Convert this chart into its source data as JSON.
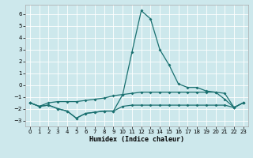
{
  "xlabel": "Humidex (Indice chaleur)",
  "background_color": "#cde8ec",
  "grid_color": "#ffffff",
  "line_color": "#1a7070",
  "xlim": [
    -0.5,
    23.5
  ],
  "ylim": [
    -3.5,
    6.8
  ],
  "yticks": [
    -3,
    -2,
    -1,
    0,
    1,
    2,
    3,
    4,
    5,
    6
  ],
  "xticks": [
    0,
    1,
    2,
    3,
    4,
    5,
    6,
    7,
    8,
    9,
    10,
    11,
    12,
    13,
    14,
    15,
    16,
    17,
    18,
    19,
    20,
    21,
    22,
    23
  ],
  "curve_peak_x": [
    0,
    1,
    2,
    3,
    4,
    5,
    6,
    7,
    8,
    9,
    10,
    11,
    12,
    13,
    14,
    15,
    16,
    17,
    18,
    19,
    20,
    21,
    22,
    23
  ],
  "curve_peak_y": [
    -1.5,
    -1.8,
    -1.7,
    -2.0,
    -2.2,
    -2.8,
    -2.4,
    -2.3,
    -2.2,
    -2.2,
    -0.8,
    2.8,
    6.3,
    5.6,
    3.0,
    1.7,
    0.1,
    -0.2,
    -0.2,
    -0.5,
    -0.6,
    -1.2,
    -1.9,
    -1.5
  ],
  "curve_upper_x": [
    0,
    1,
    2,
    3,
    4,
    5,
    6,
    7,
    8,
    9,
    10,
    11,
    12,
    13,
    14,
    15,
    16,
    17,
    18,
    19,
    20,
    21,
    22,
    23
  ],
  "curve_upper_y": [
    -1.5,
    -1.8,
    -1.5,
    -1.4,
    -1.4,
    -1.4,
    -1.3,
    -1.2,
    -1.1,
    -0.9,
    -0.8,
    -0.7,
    -0.6,
    -0.6,
    -0.6,
    -0.6,
    -0.6,
    -0.6,
    -0.6,
    -0.6,
    -0.6,
    -0.7,
    -1.9,
    -1.5
  ],
  "curve_lower_x": [
    0,
    1,
    2,
    3,
    4,
    5,
    6,
    7,
    8,
    9,
    10,
    11,
    12,
    13,
    14,
    15,
    16,
    17,
    18,
    19,
    20,
    21,
    22,
    23
  ],
  "curve_lower_y": [
    -1.5,
    -1.8,
    -1.7,
    -2.0,
    -2.2,
    -2.8,
    -2.4,
    -2.3,
    -2.2,
    -2.2,
    -1.8,
    -1.7,
    -1.7,
    -1.7,
    -1.7,
    -1.7,
    -1.7,
    -1.7,
    -1.7,
    -1.7,
    -1.7,
    -1.7,
    -1.9,
    -1.5
  ]
}
